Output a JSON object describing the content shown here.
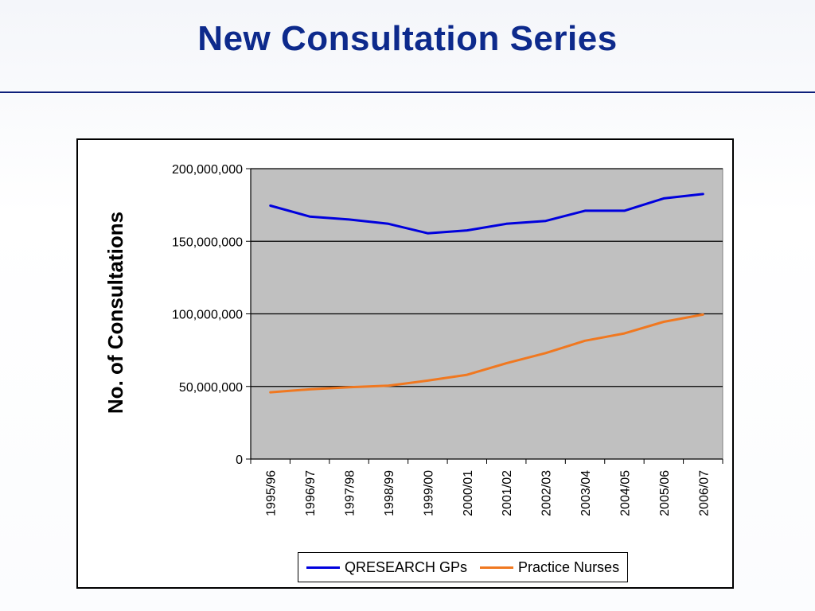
{
  "slide": {
    "title": "New Consultation Series"
  },
  "chart_data": {
    "type": "line",
    "title": "",
    "xlabel": "",
    "ylabel": "No. of Consultations",
    "categories": [
      "1995/96",
      "1996/97",
      "1997/98",
      "1998/99",
      "1999/00",
      "2000/01",
      "2001/02",
      "2002/03",
      "2003/04",
      "2004/05",
      "2005/06",
      "2006/07"
    ],
    "ylim": [
      0,
      200000000
    ],
    "yticks": [
      0,
      50000000,
      100000000,
      150000000,
      200000000
    ],
    "ytick_labels": [
      "0",
      "50,000,000",
      "100,000,000",
      "150,000,000",
      "200,000,000"
    ],
    "grid": true,
    "plot_background": "#c0c0c0",
    "legend_position": "bottom",
    "series": [
      {
        "name": "QRESEARCH GPs",
        "color": "#0000dd",
        "values": [
          174500000,
          167000000,
          165000000,
          162000000,
          155500000,
          157500000,
          162000000,
          164000000,
          171000000,
          171000000,
          179500000,
          182500000
        ]
      },
      {
        "name": "Practice Nurses",
        "color": "#f07820",
        "values": [
          46000000,
          48000000,
          49500000,
          50500000,
          54000000,
          58000000,
          66000000,
          73000000,
          81500000,
          86500000,
          94500000,
          99500000
        ]
      }
    ]
  }
}
